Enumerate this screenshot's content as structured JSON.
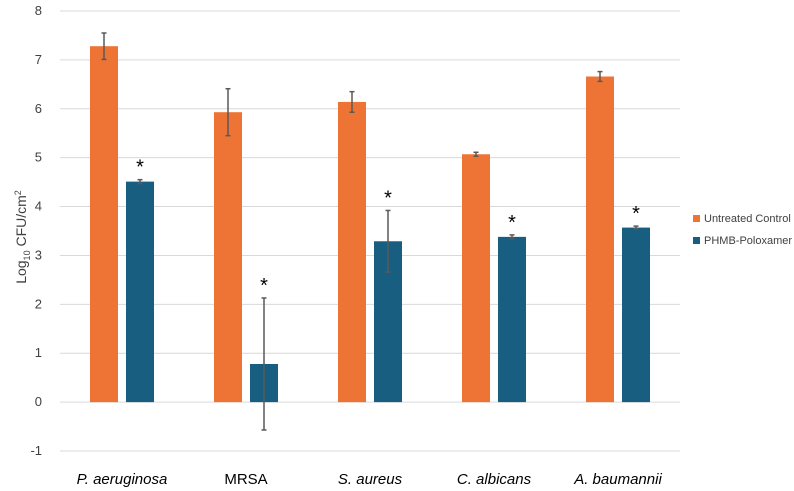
{
  "chart_data": {
    "type": "bar",
    "categories": [
      "P. aeruginosa",
      "MRSA",
      "S. aureus",
      "C. albicans",
      "A. baumannii"
    ],
    "category_italic": [
      true,
      false,
      true,
      true,
      true
    ],
    "ylabel_main": "Log",
    "ylabel_sub": "10",
    "ylabel_rest": " CFU/cm",
    "ylabel_sup": "2",
    "ylim": [
      -1,
      8
    ],
    "yticks": [
      -1,
      0,
      1,
      2,
      3,
      4,
      5,
      6,
      7,
      8
    ],
    "grid": true,
    "legend_position": "right",
    "series": [
      {
        "name": "Untreated Control",
        "color": "#ED7434",
        "values": [
          7.28,
          5.93,
          6.14,
          5.07,
          6.66
        ],
        "errors": [
          0.27,
          0.48,
          0.21,
          0.04,
          0.1
        ]
      },
      {
        "name": "PHMB-Poloxamer",
        "color": "#175E80",
        "values": [
          4.51,
          0.78,
          3.29,
          3.38,
          3.57
        ],
        "errors": [
          0.04,
          1.35,
          0.63,
          0.04,
          0.03
        ]
      }
    ],
    "significance_marker": "*",
    "significant": [
      true,
      true,
      true,
      true,
      true
    ]
  }
}
